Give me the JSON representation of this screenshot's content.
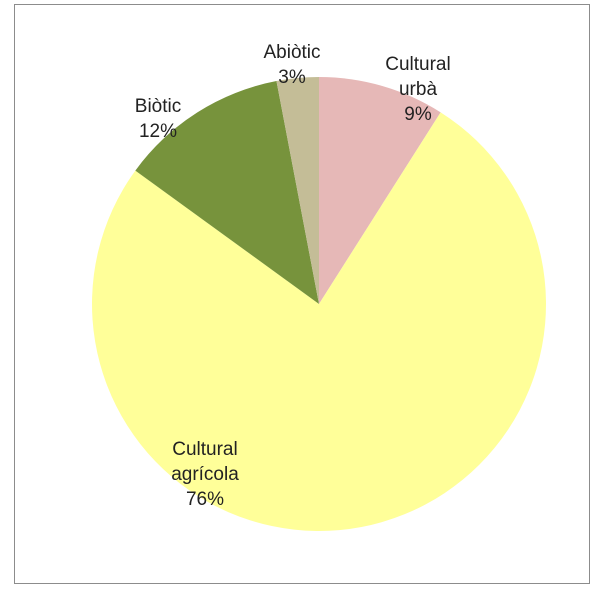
{
  "chart_data": {
    "type": "pie",
    "title": "",
    "start_angle_deg": 0,
    "direction": "clockwise",
    "slices": [
      {
        "lines": [
          "Cultural",
          "urbà",
          "9%"
        ],
        "value": 9,
        "color": "#e6b8b7"
      },
      {
        "lines": [
          "Cultural",
          "agrícola",
          "76%"
        ],
        "value": 76,
        "color": "#ffff99"
      },
      {
        "lines": [
          "Biòtic",
          "12%"
        ],
        "value": 12,
        "color": "#77933c"
      },
      {
        "lines": [
          "Abiòtic",
          "3%"
        ],
        "value": 3,
        "color": "#c4bd97"
      }
    ]
  }
}
